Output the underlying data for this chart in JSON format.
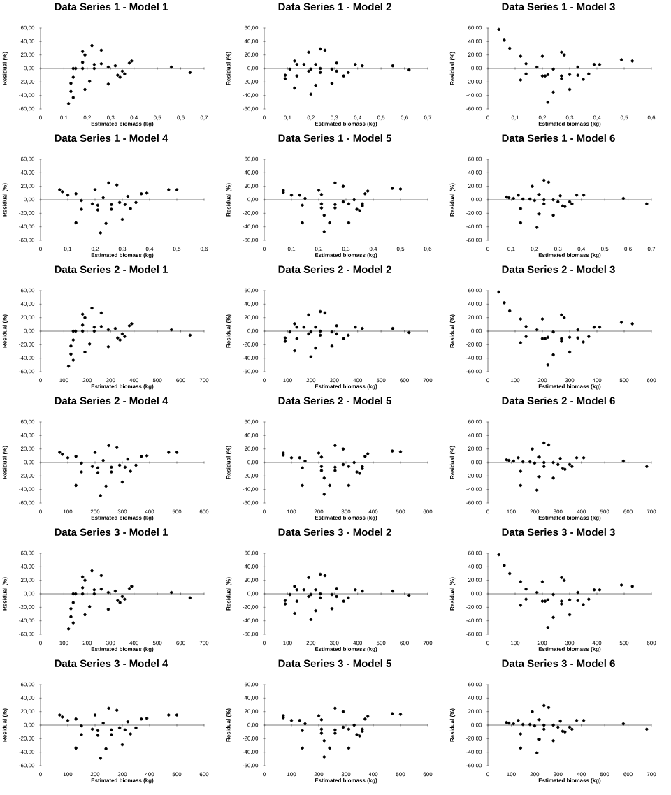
{
  "chart_data": [
    {
      "type": "scatter",
      "title": "Data Series 1 - Model 1",
      "xlabel": "Estimated biomass (kg)",
      "ylabel": "Residual (%)",
      "color": "#000000",
      "xlim": [
        0,
        0.7
      ],
      "ylim": [
        -60,
        60
      ],
      "xticks": [
        0,
        {
          "value": 0.1,
          "label": "0,1"
        },
        {
          "value": 0.2,
          "label": "0,2"
        },
        {
          "value": 0.3,
          "label": "0,3"
        },
        {
          "value": 0.4,
          "label": "0,4"
        },
        {
          "value": 0.5,
          "label": "0,5"
        },
        {
          "value": 0.6,
          "label": "0,6"
        },
        {
          "value": 0.7,
          "label": "0,7"
        }
      ],
      "yticks": [
        {
          "value": 60,
          "label": "60,00"
        },
        {
          "value": 40,
          "label": "40,00"
        },
        {
          "value": 20,
          "label": "20,00"
        },
        {
          "value": 0,
          "label": "0,00"
        },
        {
          "value": -20,
          "label": "-20,00"
        },
        {
          "value": -40,
          "label": "-40,00"
        },
        {
          "value": -60,
          "label": "-60,00"
        }
      ],
      "x": [
        0.12,
        0.13,
        0.13,
        0.14,
        0.14,
        0.14,
        0.15,
        0.18,
        0.18,
        0.18,
        0.19,
        0.19,
        0.21,
        0.22,
        0.23,
        0.23,
        0.26,
        0.26,
        0.29,
        0.29,
        0.32,
        0.33,
        0.34,
        0.35,
        0.36,
        0.38,
        0.39,
        0.56,
        0.64
      ],
      "values": [
        -52,
        -34,
        -22,
        -13,
        -43,
        0,
        0,
        0,
        9,
        25,
        20,
        -31,
        -19,
        34,
        6,
        0,
        27,
        7,
        -23,
        2,
        4,
        -10,
        -13,
        -4,
        -8,
        8,
        11,
        2,
        -6
      ]
    },
    {
      "type": "scatter",
      "title": "Data Series 1 - Model 2",
      "xlabel": "Estimated biomass (kg)",
      "ylabel": "Residual (%)",
      "color": "#000000",
      "xlim": [
        0,
        0.7
      ],
      "ylim": [
        -60,
        60
      ],
      "xticks": [
        0,
        {
          "value": 0.1,
          "label": "0,1"
        },
        {
          "value": 0.2,
          "label": "0,2"
        },
        {
          "value": 0.3,
          "label": "0,3"
        },
        {
          "value": 0.4,
          "label": "0,4"
        },
        {
          "value": 0.5,
          "label": "0,5"
        },
        {
          "value": 0.6,
          "label": "0,6"
        },
        {
          "value": 0.7,
          "label": "0,7"
        }
      ],
      "yticks": [
        {
          "value": 60,
          "label": "60,00"
        },
        {
          "value": 40,
          "label": "40,00"
        },
        {
          "value": 20,
          "label": "20,00"
        },
        {
          "value": 0,
          "label": "0,00"
        },
        {
          "value": -20,
          "label": "-20,00"
        },
        {
          "value": -40,
          "label": "-40,00"
        },
        {
          "value": -60,
          "label": "-60,00"
        }
      ],
      "x": [
        0.09,
        0.09,
        0.11,
        0.13,
        0.13,
        0.14,
        0.14,
        0.17,
        0.19,
        0.19,
        0.2,
        0.2,
        0.22,
        0.22,
        0.24,
        0.24,
        0.24,
        0.26,
        0.29,
        0.29,
        0.31,
        0.31,
        0.34,
        0.36,
        0.39,
        0.42,
        0.55,
        0.62
      ],
      "values": [
        -15,
        -10,
        -1,
        -29,
        11,
        6,
        -11,
        6,
        24,
        -4,
        -1,
        -38,
        6,
        -25,
        29,
        0,
        -6,
        27,
        -1,
        -22,
        8,
        -4,
        -11,
        -6,
        6,
        4,
        4,
        -2
      ]
    },
    {
      "type": "scatter",
      "title": "Data Series 1 - Model 3",
      "xlabel": "Estimated biomass (kg)",
      "ylabel": "Residual (%)",
      "color": "#000000",
      "xlim": [
        0,
        0.6
      ],
      "ylim": [
        -60,
        60
      ],
      "xticks": [
        0,
        {
          "value": 0.1,
          "label": "0,1"
        },
        {
          "value": 0.2,
          "label": "0,2"
        },
        {
          "value": 0.3,
          "label": "0,3"
        },
        {
          "value": 0.4,
          "label": "0,4"
        },
        {
          "value": 0.5,
          "label": "0,5"
        },
        {
          "value": 0.6,
          "label": "0,6"
        }
      ],
      "yticks": [
        {
          "value": 60,
          "label": "60,00"
        },
        {
          "value": 40,
          "label": "40,00"
        },
        {
          "value": 20,
          "label": "20,00"
        },
        {
          "value": 0,
          "label": "0,00"
        },
        {
          "value": -20,
          "label": "-20,00"
        },
        {
          "value": -40,
          "label": "-40,00"
        },
        {
          "value": -60,
          "label": "-60,00"
        }
      ],
      "x": [
        0.04,
        0.06,
        0.08,
        0.12,
        0.12,
        0.14,
        0.14,
        0.18,
        0.2,
        0.2,
        0.21,
        0.22,
        0.24,
        0.24,
        0.22,
        0.27,
        0.27,
        0.27,
        0.28,
        0.3,
        0.3,
        0.33,
        0.33,
        0.35,
        0.37,
        0.39,
        0.41,
        0.49,
        0.53
      ],
      "values": [
        58,
        42,
        30,
        18,
        -17,
        7,
        -8,
        2,
        18,
        -11,
        -11,
        -9,
        -1,
        -35,
        -50,
        24,
        -11,
        -15,
        20,
        -9,
        -31,
        2,
        -10,
        -16,
        -8,
        6,
        6,
        13,
        11
      ]
    },
    {
      "type": "scatter",
      "title": "Data Series 1 - Model 4",
      "xlabel": "Estimated biomass (kg)",
      "ylabel": "Residual (%)",
      "color": "#000000",
      "xlim": [
        0,
        0.6
      ],
      "ylim": [
        -60,
        60
      ],
      "xticks": [
        0,
        {
          "value": 0.1,
          "label": "0,1"
        },
        {
          "value": 0.2,
          "label": "0,2"
        },
        {
          "value": 0.3,
          "label": "0,3"
        },
        {
          "value": 0.4,
          "label": "0,4"
        },
        {
          "value": 0.5,
          "label": "0,5"
        },
        {
          "value": 0.6,
          "label": "0,6"
        }
      ],
      "yticks": [
        {
          "value": 60,
          "label": "60,00"
        },
        {
          "value": 40,
          "label": "40,00"
        },
        {
          "value": 20,
          "label": "20,00"
        },
        {
          "value": 0,
          "label": "0,00"
        },
        {
          "value": -20,
          "label": "-20,00"
        },
        {
          "value": -40,
          "label": "-40,00"
        },
        {
          "value": -60,
          "label": "-60,00"
        }
      ],
      "x": [
        0.07,
        0.08,
        0.1,
        0.13,
        0.13,
        0.15,
        0.15,
        0.19,
        0.2,
        0.21,
        0.21,
        0.22,
        0.23,
        0.24,
        0.25,
        0.26,
        0.26,
        0.28,
        0.29,
        0.3,
        0.31,
        0.32,
        0.33,
        0.35,
        0.37,
        0.39,
        0.47,
        0.5
      ],
      "values": [
        15,
        12,
        7,
        9,
        -34,
        -1,
        -14,
        -6,
        15,
        -15,
        -8,
        -49,
        3,
        -35,
        25,
        -7,
        -14,
        22,
        -4,
        -29,
        -7,
        5,
        -13,
        -4,
        9,
        10,
        15,
        15
      ]
    },
    {
      "type": "scatter",
      "title": "Data Series 1 - Model 5",
      "xlabel": "Estimated biomass (kg)",
      "ylabel": "Residual (%)",
      "color": "#000000",
      "xlim": [
        0,
        0.6
      ],
      "ylim": [
        -60,
        60
      ],
      "xticks": [
        0,
        {
          "value": 0.1,
          "label": "0,1"
        },
        {
          "value": 0.2,
          "label": "0,2"
        },
        {
          "value": 0.3,
          "label": "0,3"
        },
        {
          "value": 0.4,
          "label": "0,4"
        },
        {
          "value": 0.5,
          "label": "0,5"
        },
        {
          "value": 0.6,
          "label": "0,6"
        }
      ],
      "yticks": [
        {
          "value": 60,
          "label": "60,00"
        },
        {
          "value": 40,
          "label": "40,00"
        },
        {
          "value": 20,
          "label": "20,00"
        },
        {
          "value": 0,
          "label": "0,00"
        },
        {
          "value": -20,
          "label": "-20,00"
        },
        {
          "value": -40,
          "label": "-40,00"
        },
        {
          "value": -60,
          "label": "-60,00"
        }
      ],
      "x": [
        0.07,
        0.07,
        0.1,
        0.13,
        0.14,
        0.14,
        0.15,
        0.2,
        0.21,
        0.21,
        0.21,
        0.22,
        0.22,
        0.24,
        0.26,
        0.26,
        0.26,
        0.29,
        0.29,
        0.31,
        0.31,
        0.33,
        0.34,
        0.35,
        0.36,
        0.36,
        0.37,
        0.38,
        0.47,
        0.5
      ],
      "values": [
        11,
        14,
        7,
        7,
        -34,
        -8,
        2,
        14,
        8,
        -6,
        -12,
        -23,
        -47,
        -34,
        25,
        -7,
        -12,
        20,
        -3,
        -34,
        -6,
        0,
        -14,
        -16,
        -6,
        -9,
        9,
        13,
        17,
        16
      ]
    },
    {
      "type": "scatter",
      "title": "Data Series 1 - Model 6",
      "xlabel": "Estimated biomass (kg)",
      "ylabel": "Residual (%)",
      "color": "#000000",
      "xlim": [
        0,
        0.7
      ],
      "ylim": [
        -60,
        60
      ],
      "xticks": [
        0,
        {
          "value": 0.1,
          "label": "0,1"
        },
        {
          "value": 0.2,
          "label": "0,2"
        },
        {
          "value": 0.3,
          "label": "0,3"
        },
        {
          "value": 0.4,
          "label": "0,4"
        },
        {
          "value": 0.5,
          "label": "0,5"
        },
        {
          "value": 0.6,
          "label": "0,6"
        },
        {
          "value": 0.7,
          "label": "0,7"
        }
      ],
      "yticks": [
        {
          "value": 60,
          "label": "60,00"
        },
        {
          "value": 40,
          "label": "40,00"
        },
        {
          "value": 20,
          "label": "20,00"
        },
        {
          "value": 0,
          "label": "0,00"
        },
        {
          "value": -20,
          "label": "-20,00"
        },
        {
          "value": -40,
          "label": "-40,00"
        },
        {
          "value": -60,
          "label": "-60,00"
        }
      ],
      "x": [
        0.08,
        0.09,
        0.11,
        0.13,
        0.14,
        0.14,
        0.15,
        0.18,
        0.19,
        0.2,
        0.21,
        0.22,
        0.22,
        0.24,
        0.24,
        0.24,
        0.26,
        0.28,
        0.28,
        0.3,
        0.31,
        0.32,
        0.33,
        0.35,
        0.36,
        0.38,
        0.41,
        0.58,
        0.68
      ],
      "values": [
        4,
        3,
        2,
        7,
        -34,
        -13,
        1,
        1,
        20,
        -1,
        -41,
        8,
        -21,
        0,
        -6,
        29,
        26,
        0,
        -23,
        -3,
        6,
        -9,
        -10,
        -3,
        -6,
        7,
        7,
        2,
        -6
      ]
    },
    {
      "type": "scatter",
      "title": "Data Series 2 - Model 1",
      "xlabel": "Estimated biomass (kg)",
      "ylabel": "Residual (%)",
      "color": "#000000",
      "xlim": [
        0,
        700
      ],
      "ylim": [
        -60,
        60
      ],
      "xticks": [
        0,
        100,
        200,
        300,
        400,
        500,
        600,
        700
      ],
      "yticks": [
        {
          "value": 60,
          "label": "60,00"
        },
        {
          "value": 40,
          "label": "40,00"
        },
        {
          "value": 20,
          "label": "20,00"
        },
        {
          "value": 0,
          "label": "0,00"
        },
        {
          "value": -20,
          "label": "-20,00"
        },
        {
          "value": -40,
          "label": "-40,00"
        },
        {
          "value": -60,
          "label": "-60,00"
        }
      ],
      "x": [
        120,
        130,
        130,
        140,
        140,
        140,
        150,
        180,
        180,
        180,
        190,
        190,
        210,
        220,
        230,
        230,
        260,
        260,
        290,
        290,
        320,
        330,
        340,
        350,
        360,
        380,
        390,
        560,
        640
      ],
      "values": [
        -52,
        -34,
        -22,
        -13,
        -43,
        0,
        0,
        0,
        9,
        25,
        20,
        -31,
        -19,
        34,
        6,
        0,
        27,
        7,
        -23,
        2,
        4,
        -10,
        -13,
        -4,
        -8,
        8,
        11,
        2,
        -6
      ]
    },
    {
      "type": "scatter",
      "title": "Data Series 2 - Model 2",
      "xlabel": "Estimated biomass (kg)",
      "ylabel": "Residual (%)",
      "color": "#000000",
      "xlim": [
        0,
        700
      ],
      "ylim": [
        -60,
        60
      ],
      "xticks": [
        0,
        100,
        200,
        300,
        400,
        500,
        600,
        700
      ],
      "yticks": [
        {
          "value": 60,
          "label": "60,00"
        },
        {
          "value": 40,
          "label": "40,00"
        },
        {
          "value": 20,
          "label": "20,00"
        },
        {
          "value": 0,
          "label": "0,00"
        },
        {
          "value": -20,
          "label": "-20,00"
        },
        {
          "value": -40,
          "label": "-40,00"
        },
        {
          "value": -60,
          "label": "-60,00"
        }
      ],
      "x": [
        90,
        90,
        110,
        130,
        130,
        140,
        140,
        170,
        190,
        190,
        200,
        200,
        220,
        220,
        240,
        240,
        240,
        260,
        290,
        290,
        310,
        310,
        340,
        360,
        390,
        420,
        550,
        620
      ],
      "values": [
        -15,
        -10,
        -1,
        -29,
        11,
        6,
        -11,
        6,
        24,
        -4,
        -1,
        -38,
        6,
        -25,
        29,
        0,
        -6,
        27,
        -1,
        -22,
        8,
        -4,
        -11,
        -6,
        6,
        4,
        4,
        -2
      ]
    },
    {
      "type": "scatter",
      "title": "Data Series 2 - Model 3",
      "xlabel": "Estimated biomass (kg)",
      "ylabel": "Residual (%)",
      "color": "#000000",
      "xlim": [
        0,
        600
      ],
      "ylim": [
        -60,
        60
      ],
      "xticks": [
        0,
        100,
        200,
        300,
        400,
        500,
        600
      ],
      "yticks": [
        {
          "value": 60,
          "label": "60,00"
        },
        {
          "value": 40,
          "label": "40,00"
        },
        {
          "value": 20,
          "label": "20,00"
        },
        {
          "value": 0,
          "label": "0,00"
        },
        {
          "value": -20,
          "label": "-20,00"
        },
        {
          "value": -40,
          "label": "-40,00"
        },
        {
          "value": -60,
          "label": "-60,00"
        }
      ],
      "x": [
        40,
        60,
        80,
        120,
        120,
        140,
        140,
        180,
        200,
        200,
        210,
        220,
        240,
        240,
        220,
        270,
        270,
        270,
        280,
        300,
        300,
        330,
        330,
        350,
        370,
        390,
        410,
        490,
        530
      ],
      "values": [
        58,
        42,
        30,
        18,
        -17,
        7,
        -8,
        2,
        18,
        -11,
        -11,
        -9,
        -1,
        -35,
        -50,
        24,
        -11,
        -15,
        20,
        -9,
        -31,
        2,
        -10,
        -16,
        -8,
        6,
        6,
        13,
        11
      ]
    },
    {
      "type": "scatter",
      "title": "Data Series 2 - Model 4",
      "xlabel": "Estimated biomass (kg)",
      "ylabel": "Residual (%)",
      "color": "#000000",
      "xlim": [
        0,
        600
      ],
      "ylim": [
        -60,
        60
      ],
      "xticks": [
        0,
        100,
        200,
        300,
        400,
        500,
        600
      ],
      "yticks": [
        {
          "value": 60,
          "label": "60,00"
        },
        {
          "value": 40,
          "label": "40,00"
        },
        {
          "value": 20,
          "label": "20,00"
        },
        {
          "value": 0,
          "label": "0,00"
        },
        {
          "value": -20,
          "label": "-20,00"
        },
        {
          "value": -40,
          "label": "-40,00"
        },
        {
          "value": -60,
          "label": "-60,00"
        }
      ],
      "x": [
        70,
        80,
        100,
        130,
        130,
        150,
        150,
        190,
        200,
        210,
        210,
        220,
        230,
        240,
        250,
        260,
        260,
        280,
        290,
        300,
        310,
        320,
        330,
        350,
        370,
        390,
        470,
        500
      ],
      "values": [
        15,
        12,
        7,
        9,
        -34,
        -1,
        -14,
        -6,
        15,
        -15,
        -8,
        -49,
        3,
        -35,
        25,
        -7,
        -14,
        22,
        -4,
        -29,
        -7,
        5,
        -13,
        -4,
        9,
        10,
        15,
        15
      ]
    },
    {
      "type": "scatter",
      "title": "Data Series 2 - Model 5",
      "xlabel": "Estimated biomass (kg)",
      "ylabel": "Residual (%)",
      "color": "#000000",
      "xlim": [
        0,
        600
      ],
      "ylim": [
        -60,
        60
      ],
      "xticks": [
        0,
        100,
        200,
        300,
        400,
        500,
        600
      ],
      "yticks": [
        {
          "value": 60,
          "label": "60,00"
        },
        {
          "value": 40,
          "label": "40,00"
        },
        {
          "value": 20,
          "label": "20,00"
        },
        {
          "value": 0,
          "label": "0,00"
        },
        {
          "value": -20,
          "label": "-20,00"
        },
        {
          "value": -40,
          "label": "-40,00"
        },
        {
          "value": -60,
          "label": "-60,00"
        }
      ],
      "x": [
        70,
        70,
        100,
        130,
        140,
        140,
        150,
        200,
        210,
        210,
        210,
        220,
        220,
        240,
        260,
        260,
        260,
        290,
        290,
        310,
        310,
        330,
        340,
        350,
        360,
        360,
        370,
        380,
        470,
        500
      ],
      "values": [
        11,
        14,
        7,
        7,
        -34,
        -8,
        2,
        14,
        8,
        -6,
        -12,
        -23,
        -47,
        -34,
        25,
        -7,
        -12,
        20,
        -3,
        -34,
        -6,
        0,
        -14,
        -16,
        -6,
        -9,
        9,
        13,
        17,
        16
      ]
    },
    {
      "type": "scatter",
      "title": "Data Series 2 - Model 6",
      "xlabel": "Estimated biomass (kg)",
      "ylabel": "Residual (%)",
      "color": "#000000",
      "xlim": [
        0,
        700
      ],
      "ylim": [
        -60,
        60
      ],
      "xticks": [
        0,
        100,
        200,
        300,
        400,
        500,
        600,
        700
      ],
      "yticks": [
        {
          "value": 60,
          "label": "60,00"
        },
        {
          "value": 40,
          "label": "40,00"
        },
        {
          "value": 20,
          "label": "20,00"
        },
        {
          "value": 0,
          "label": "0,00"
        },
        {
          "value": -20,
          "label": "-20,00"
        },
        {
          "value": -40,
          "label": "-40,00"
        },
        {
          "value": -60,
          "label": "-60,00"
        }
      ],
      "x": [
        80,
        90,
        110,
        130,
        140,
        140,
        150,
        180,
        190,
        200,
        210,
        220,
        220,
        240,
        240,
        240,
        260,
        280,
        280,
        300,
        310,
        320,
        330,
        350,
        360,
        380,
        410,
        580,
        680
      ],
      "values": [
        4,
        3,
        2,
        7,
        -34,
        -13,
        1,
        1,
        20,
        -1,
        -41,
        8,
        -21,
        0,
        -6,
        29,
        26,
        0,
        -23,
        -3,
        6,
        -9,
        -10,
        -3,
        -6,
        7,
        7,
        2,
        -6
      ]
    },
    {
      "type": "scatter",
      "title": "Data Series 3 - Model 1",
      "xlabel": "Estimated biomass (kg)",
      "ylabel": "Residual (%)",
      "color": "#000000",
      "xlim": [
        0,
        700
      ],
      "ylim": [
        -60,
        60
      ],
      "xticks": [
        0,
        100,
        200,
        300,
        400,
        500,
        600,
        700
      ],
      "yticks": [
        {
          "value": 60,
          "label": "60,00"
        },
        {
          "value": 40,
          "label": "40,00"
        },
        {
          "value": 20,
          "label": "20,00"
        },
        {
          "value": 0,
          "label": "0,00"
        },
        {
          "value": -20,
          "label": "-20,00"
        },
        {
          "value": -40,
          "label": "-40,00"
        },
        {
          "value": -60,
          "label": "-60,00"
        }
      ],
      "x": [
        120,
        130,
        130,
        140,
        140,
        140,
        150,
        180,
        180,
        180,
        190,
        190,
        210,
        220,
        230,
        230,
        260,
        260,
        290,
        290,
        320,
        330,
        340,
        350,
        360,
        380,
        390,
        560,
        640
      ],
      "values": [
        -52,
        -34,
        -22,
        -13,
        -43,
        0,
        0,
        0,
        9,
        25,
        20,
        -31,
        -19,
        34,
        6,
        0,
        27,
        7,
        -23,
        2,
        4,
        -10,
        -13,
        -4,
        -8,
        8,
        11,
        2,
        -6
      ]
    },
    {
      "type": "scatter",
      "title": "Data Series 3 - Model 2",
      "xlabel": "Estimated biomass (kg)",
      "ylabel": "Residual (%)",
      "color": "#000000",
      "xlim": [
        0,
        700
      ],
      "ylim": [
        -60,
        60
      ],
      "xticks": [
        0,
        100,
        200,
        300,
        400,
        500,
        600,
        700
      ],
      "yticks": [
        {
          "value": 60,
          "label": "60,00"
        },
        {
          "value": 40,
          "label": "40,00"
        },
        {
          "value": 20,
          "label": "20,00"
        },
        {
          "value": 0,
          "label": "0,00"
        },
        {
          "value": -20,
          "label": "-20,00"
        },
        {
          "value": -40,
          "label": "-40,00"
        },
        {
          "value": -60,
          "label": "-60,00"
        }
      ],
      "x": [
        90,
        90,
        110,
        130,
        130,
        140,
        140,
        170,
        190,
        190,
        200,
        200,
        220,
        220,
        240,
        240,
        240,
        260,
        290,
        290,
        310,
        310,
        340,
        360,
        390,
        420,
        550,
        620
      ],
      "values": [
        -15,
        -10,
        -1,
        -29,
        11,
        6,
        -11,
        6,
        24,
        -4,
        -1,
        -38,
        6,
        -25,
        29,
        0,
        -6,
        27,
        -1,
        -22,
        8,
        -4,
        -11,
        -6,
        6,
        4,
        4,
        -2
      ]
    },
    {
      "type": "scatter",
      "title": "Data Series 3 - Model 3",
      "xlabel": "Estimated biomass (kg)",
      "ylabel": "Residual (%)",
      "color": "#000000",
      "xlim": [
        0,
        600
      ],
      "ylim": [
        -60,
        60
      ],
      "xticks": [
        0,
        100,
        200,
        300,
        400,
        500,
        600
      ],
      "yticks": [
        {
          "value": 60,
          "label": "60,00"
        },
        {
          "value": 40,
          "label": "40,00"
        },
        {
          "value": 20,
          "label": "20,00"
        },
        {
          "value": 0,
          "label": "0,00"
        },
        {
          "value": -20,
          "label": "-20,00"
        },
        {
          "value": -40,
          "label": "-40,00"
        },
        {
          "value": -60,
          "label": "-60,00"
        }
      ],
      "x": [
        40,
        60,
        80,
        120,
        120,
        140,
        140,
        180,
        200,
        200,
        210,
        220,
        240,
        240,
        220,
        270,
        270,
        270,
        280,
        300,
        300,
        330,
        330,
        350,
        370,
        390,
        410,
        490,
        530
      ],
      "values": [
        58,
        42,
        30,
        18,
        -17,
        7,
        -8,
        2,
        18,
        -11,
        -11,
        -9,
        -1,
        -35,
        -50,
        24,
        -11,
        -15,
        20,
        -9,
        -31,
        2,
        -10,
        -16,
        -8,
        6,
        6,
        13,
        11
      ]
    },
    {
      "type": "scatter",
      "title": "Data Series 3 - Model 4",
      "xlabel": "Estimated biomass (kg)",
      "ylabel": "Residual (%)",
      "color": "#000000",
      "xlim": [
        0,
        600
      ],
      "ylim": [
        -60,
        60
      ],
      "xticks": [
        0,
        100,
        200,
        300,
        400,
        500,
        600
      ],
      "yticks": [
        {
          "value": 60,
          "label": "60,00"
        },
        {
          "value": 40,
          "label": "40,00"
        },
        {
          "value": 20,
          "label": "20,00"
        },
        {
          "value": 0,
          "label": "0,00"
        },
        {
          "value": -20,
          "label": "-20,00"
        },
        {
          "value": -40,
          "label": "-40,00"
        },
        {
          "value": -60,
          "label": "-60,00"
        }
      ],
      "x": [
        70,
        80,
        100,
        130,
        130,
        150,
        150,
        190,
        200,
        210,
        210,
        220,
        230,
        240,
        250,
        260,
        260,
        280,
        290,
        300,
        310,
        320,
        330,
        350,
        370,
        390,
        470,
        500
      ],
      "values": [
        15,
        12,
        7,
        9,
        -34,
        -1,
        -14,
        -6,
        15,
        -15,
        -8,
        -49,
        3,
        -35,
        25,
        -7,
        -14,
        22,
        -4,
        -29,
        -7,
        5,
        -13,
        -4,
        9,
        10,
        15,
        15
      ]
    },
    {
      "type": "scatter",
      "title": "Data Series 3 - Model 5",
      "xlabel": "Estimated biomass (kg)",
      "ylabel": "Residual (%)",
      "color": "#000000",
      "xlim": [
        0,
        600
      ],
      "ylim": [
        -60,
        60
      ],
      "xticks": [
        0,
        100,
        200,
        300,
        400,
        500,
        600
      ],
      "yticks": [
        {
          "value": 60,
          "label": "60,00"
        },
        {
          "value": 40,
          "label": "40,00"
        },
        {
          "value": 20,
          "label": "20,00"
        },
        {
          "value": 0,
          "label": "0,00"
        },
        {
          "value": -20,
          "label": "-20,00"
        },
        {
          "value": -40,
          "label": "-40,00"
        },
        {
          "value": -60,
          "label": "-60,00"
        }
      ],
      "x": [
        70,
        70,
        100,
        130,
        140,
        140,
        150,
        200,
        210,
        210,
        210,
        220,
        220,
        240,
        260,
        260,
        260,
        290,
        290,
        310,
        310,
        330,
        340,
        350,
        360,
        360,
        370,
        380,
        470,
        500
      ],
      "values": [
        11,
        14,
        7,
        7,
        -34,
        -8,
        2,
        14,
        8,
        -6,
        -12,
        -23,
        -47,
        -34,
        25,
        -7,
        -12,
        20,
        -3,
        -34,
        -6,
        0,
        -14,
        -16,
        -6,
        -9,
        9,
        13,
        17,
        16
      ]
    },
    {
      "type": "scatter",
      "title": "Data Series 3 - Model 6",
      "xlabel": "Estimated biomass (kg)",
      "ylabel": "Residual (%)",
      "color": "#000000",
      "xlim": [
        0,
        700
      ],
      "ylim": [
        -60,
        60
      ],
      "xticks": [
        0,
        100,
        200,
        300,
        400,
        500,
        600,
        700
      ],
      "yticks": [
        {
          "value": 60,
          "label": "60,00"
        },
        {
          "value": 40,
          "label": "40,00"
        },
        {
          "value": 20,
          "label": "20,00"
        },
        {
          "value": 0,
          "label": "0,00"
        },
        {
          "value": -20,
          "label": "-20,00"
        },
        {
          "value": -40,
          "label": "-40,00"
        },
        {
          "value": -60,
          "label": "-60,00"
        }
      ],
      "x": [
        80,
        90,
        110,
        130,
        140,
        140,
        150,
        180,
        190,
        200,
        210,
        220,
        220,
        240,
        240,
        240,
        260,
        280,
        280,
        300,
        310,
        320,
        330,
        350,
        360,
        380,
        410,
        580,
        680
      ],
      "values": [
        4,
        3,
        2,
        7,
        -34,
        -13,
        1,
        1,
        20,
        -1,
        -41,
        8,
        -21,
        0,
        -6,
        29,
        26,
        0,
        -23,
        -3,
        6,
        -9,
        -10,
        -3,
        -6,
        7,
        7,
        2,
        -6
      ]
    }
  ]
}
